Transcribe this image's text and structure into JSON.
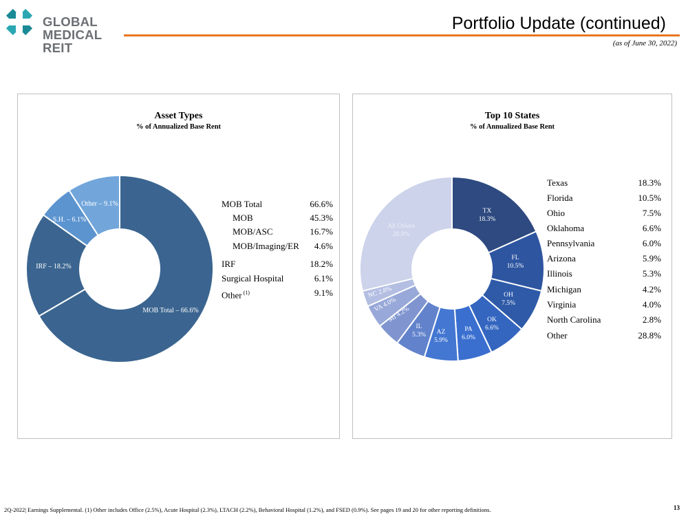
{
  "logo": {
    "line1": "GLOBAL",
    "line2": "MEDICAL REIT"
  },
  "header": {
    "title": "Portfolio Update (continued)",
    "subtitle": "(as of June 30, 2022)"
  },
  "colors": {
    "accent": "#e87722",
    "logo_teal": "#1a8a96"
  },
  "chart_data": [
    {
      "type": "pie",
      "title": "Asset Types",
      "subtitle": "% of Annualized Base Rent",
      "categories": [
        "MOB Total",
        "IRF",
        "S.H.",
        "Other"
      ],
      "values": [
        66.6,
        18.2,
        6.1,
        9.1
      ],
      "slice_labels": [
        "MOB Total – 66.6%",
        "IRF – 18.2%",
        "S.H. – 6.1%",
        "Other – 9.1%"
      ],
      "colors": [
        "#3b6590",
        "#3b6590",
        "#5c94cf",
        "#72a6db"
      ],
      "legend": [
        {
          "label": "MOB Total",
          "value": "66.6%"
        },
        {
          "label": "MOB",
          "value": "45.3%"
        },
        {
          "label": "MOB/ASC",
          "value": "16.7%"
        },
        {
          "label": "MOB/Imaging/ER",
          "value": "4.6%"
        },
        {
          "label": "IRF",
          "value": "18.2%"
        },
        {
          "label": "Surgical Hospital",
          "value": "6.1%"
        },
        {
          "label": "Other",
          "note": "(1)",
          "value": "9.1%"
        }
      ]
    },
    {
      "type": "pie",
      "title": "Top 10 States",
      "subtitle": "% of Annualized Base Rent",
      "categories": [
        "TX",
        "FL",
        "OH",
        "OK",
        "PA",
        "AZ",
        "IL",
        "MI",
        "VA",
        "NC",
        "All Others"
      ],
      "values": [
        18.3,
        10.5,
        7.5,
        6.6,
        6.0,
        5.9,
        5.3,
        4.2,
        4.0,
        2.8,
        28.8
      ],
      "slice_labels": [
        [
          "TX",
          "18.3%"
        ],
        [
          "FL",
          "10.5%"
        ],
        [
          "OH",
          "7.5%"
        ],
        [
          "OK",
          "6.6%"
        ],
        [
          "PA",
          "6.0%"
        ],
        [
          "AZ",
          "5.9%"
        ],
        [
          "IL",
          "5.3%"
        ],
        [
          "MI 4.2%"
        ],
        [
          "VA 4.0%"
        ],
        [
          "NC 2.8%"
        ],
        [
          "All Others",
          "28.8%"
        ]
      ],
      "colors": [
        "#2e4a80",
        "#2e55a0",
        "#2e5aa8",
        "#3466c0",
        "#3a6fd0",
        "#4477d2",
        "#6283cc",
        "#8095d0",
        "#98a8d8",
        "#b3bee2",
        "#ccd3ea"
      ],
      "legend": [
        {
          "label": "Texas",
          "value": "18.3%"
        },
        {
          "label": "Florida",
          "value": "10.5%"
        },
        {
          "label": "Ohio",
          "value": "7.5%"
        },
        {
          "label": "Oklahoma",
          "value": "6.6%"
        },
        {
          "label": "Pennsylvania",
          "value": "6.0%"
        },
        {
          "label": "Arizona",
          "value": "5.9%"
        },
        {
          "label": "Illinois",
          "value": "5.3%"
        },
        {
          "label": "Michigan",
          "value": "4.2%"
        },
        {
          "label": "Virginia",
          "value": "4.0%"
        },
        {
          "label": "North Carolina",
          "value": "2.8%"
        },
        {
          "label": "Other",
          "value": "28.8%"
        }
      ]
    }
  ],
  "footer": {
    "text": "2Q-2022| Earnings Supplemental.  (1) Other includes Office (2.5%), Acute Hospital (2.3%), LTACH (2.2%), Behavioral Hospital (1.2%), and FSED (0.9%).  See pages 19 and 20 for other reporting definitions.",
    "page": "13"
  }
}
